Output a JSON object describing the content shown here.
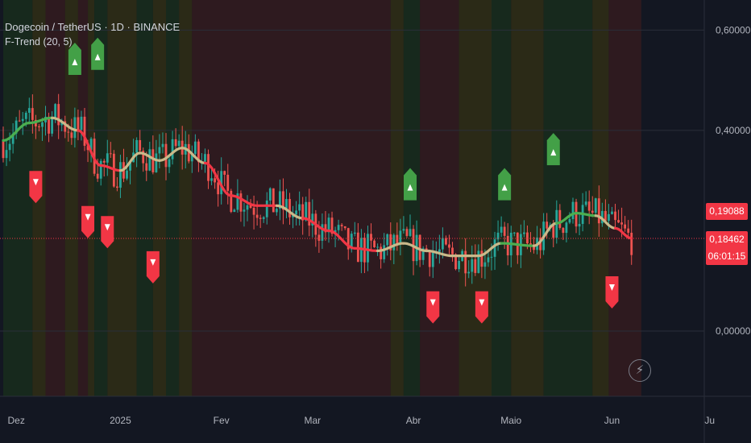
{
  "header": {
    "symbol_title": "Dogecoin / TetherUS · 1D · BINANCE",
    "indicator_title": "F-Trend (20, 5)"
  },
  "price_badges": {
    "last_price": "0,19088",
    "current_price": "0,18462",
    "countdown": "06:01:15"
  },
  "colors": {
    "background": "#131722",
    "up_signal": "#43a047",
    "down_signal": "#f23645",
    "trend_up": "#4caf50",
    "trend_down": "#f23645",
    "trend_neutral": "#c9b98a",
    "zone_green": "#17291d",
    "zone_red": "#2e1a1f",
    "zone_yellow": "#2b2a17"
  },
  "icons": {
    "chart_action": "lightning-bolt-icon"
  },
  "chart_data": {
    "type": "line",
    "title": "Dogecoin / TetherUS · 1D · BINANCE",
    "indicator": "F-Trend (20, 5)",
    "y_ticks": [
      {
        "value": 0.6,
        "label": "0,60000"
      },
      {
        "value": 0.4,
        "label": "0,40000"
      },
      {
        "value": 0.0,
        "label": "0,00000"
      }
    ],
    "ylim": [
      -0.13,
      0.66
    ],
    "x_ticks": [
      {
        "day": 4,
        "label": "Dez"
      },
      {
        "day": 36,
        "label": "2025"
      },
      {
        "day": 67,
        "label": "Fev"
      },
      {
        "day": 95,
        "label": "Mar"
      },
      {
        "day": 126,
        "label": "Abr"
      },
      {
        "day": 156,
        "label": "Maio"
      },
      {
        "day": 187,
        "label": "Jun"
      },
      {
        "day": 217,
        "label": "Ju"
      }
    ],
    "current_price": 0.18462,
    "last_price": 0.19088,
    "trend_line": [
      {
        "day": 0,
        "value": 0.38,
        "state": "up"
      },
      {
        "day": 8,
        "value": 0.415,
        "state": "up"
      },
      {
        "day": 15,
        "value": 0.425,
        "state": "neutral"
      },
      {
        "day": 23,
        "value": 0.4,
        "state": "down"
      },
      {
        "day": 30,
        "value": 0.33,
        "state": "down"
      },
      {
        "day": 36,
        "value": 0.32,
        "state": "neutral"
      },
      {
        "day": 42,
        "value": 0.355,
        "state": "neutral"
      },
      {
        "day": 48,
        "value": 0.34,
        "state": "neutral"
      },
      {
        "day": 55,
        "value": 0.365,
        "state": "neutral"
      },
      {
        "day": 62,
        "value": 0.335,
        "state": "down"
      },
      {
        "day": 70,
        "value": 0.27,
        "state": "down"
      },
      {
        "day": 78,
        "value": 0.25,
        "state": "down"
      },
      {
        "day": 84,
        "value": 0.25,
        "state": "neutral"
      },
      {
        "day": 92,
        "value": 0.225,
        "state": "down"
      },
      {
        "day": 100,
        "value": 0.2,
        "state": "down"
      },
      {
        "day": 108,
        "value": 0.165,
        "state": "down"
      },
      {
        "day": 115,
        "value": 0.16,
        "state": "neutral"
      },
      {
        "day": 123,
        "value": 0.175,
        "state": "neutral"
      },
      {
        "day": 130,
        "value": 0.16,
        "state": "neutral"
      },
      {
        "day": 138,
        "value": 0.15,
        "state": "neutral"
      },
      {
        "day": 146,
        "value": 0.15,
        "state": "neutral"
      },
      {
        "day": 153,
        "value": 0.175,
        "state": "up"
      },
      {
        "day": 163,
        "value": 0.17,
        "state": "neutral"
      },
      {
        "day": 170,
        "value": 0.215,
        "state": "up"
      },
      {
        "day": 176,
        "value": 0.235,
        "state": "up"
      },
      {
        "day": 182,
        "value": 0.23,
        "state": "neutral"
      },
      {
        "day": 188,
        "value": 0.205,
        "state": "down"
      },
      {
        "day": 193,
        "value": 0.185,
        "state": "down"
      }
    ],
    "signals": [
      {
        "day": 22,
        "value": 0.53,
        "type": "buy"
      },
      {
        "day": 29,
        "value": 0.54,
        "type": "buy"
      },
      {
        "day": 125,
        "value": 0.28,
        "type": "buy"
      },
      {
        "day": 154,
        "value": 0.28,
        "type": "buy"
      },
      {
        "day": 169,
        "value": 0.35,
        "type": "buy"
      },
      {
        "day": 10,
        "value": 0.3,
        "type": "sell"
      },
      {
        "day": 26,
        "value": 0.23,
        "type": "sell"
      },
      {
        "day": 32,
        "value": 0.21,
        "type": "sell"
      },
      {
        "day": 46,
        "value": 0.14,
        "type": "sell"
      },
      {
        "day": 132,
        "value": 0.06,
        "type": "sell"
      },
      {
        "day": 147,
        "value": 0.06,
        "type": "sell"
      },
      {
        "day": 187,
        "value": 0.09,
        "type": "sell"
      }
    ],
    "zones": [
      {
        "from": 0,
        "to": 9,
        "state": "green"
      },
      {
        "from": 9,
        "to": 13,
        "state": "yellow"
      },
      {
        "from": 13,
        "to": 19,
        "state": "red"
      },
      {
        "from": 19,
        "to": 23,
        "state": "yellow"
      },
      {
        "from": 23,
        "to": 26,
        "state": "red"
      },
      {
        "from": 26,
        "to": 28,
        "state": "yellow"
      },
      {
        "from": 28,
        "to": 32,
        "state": "green"
      },
      {
        "from": 32,
        "to": 41,
        "state": "yellow"
      },
      {
        "from": 41,
        "to": 46,
        "state": "green"
      },
      {
        "from": 46,
        "to": 50,
        "state": "yellow"
      },
      {
        "from": 50,
        "to": 54,
        "state": "green"
      },
      {
        "from": 54,
        "to": 58,
        "state": "yellow"
      },
      {
        "from": 58,
        "to": 119,
        "state": "red"
      },
      {
        "from": 119,
        "to": 123,
        "state": "yellow"
      },
      {
        "from": 123,
        "to": 128,
        "state": "green"
      },
      {
        "from": 128,
        "to": 140,
        "state": "red"
      },
      {
        "from": 140,
        "to": 150,
        "state": "yellow"
      },
      {
        "from": 150,
        "to": 156,
        "state": "green"
      },
      {
        "from": 156,
        "to": 166,
        "state": "yellow"
      },
      {
        "from": 166,
        "to": 181,
        "state": "green"
      },
      {
        "from": 181,
        "to": 186,
        "state": "yellow"
      },
      {
        "from": 186,
        "to": 196,
        "state": "red"
      }
    ]
  }
}
